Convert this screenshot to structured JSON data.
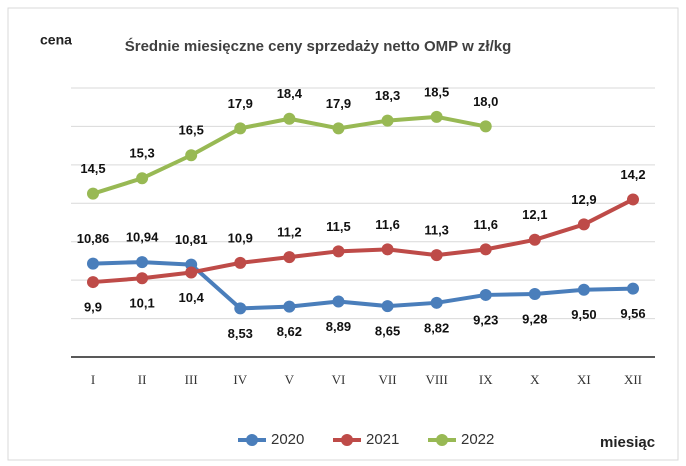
{
  "chart_data": {
    "type": "line",
    "title": "Średnie miesięczne ceny sprzedaży netto OMP w zł/kg",
    "y_label": "cena",
    "x_label": "miesiąc",
    "categories": [
      "I",
      "II",
      "III",
      "IV",
      "V",
      "VI",
      "VII",
      "VIII",
      "IX",
      "X",
      "XI",
      "XII"
    ],
    "series": [
      {
        "name": "2020",
        "color": "#4a7ebb",
        "values": [
          10.86,
          10.94,
          10.81,
          8.53,
          8.62,
          8.89,
          8.65,
          8.82,
          9.23,
          9.28,
          9.5,
          9.56
        ],
        "value_labels": [
          "10,86",
          "10,94",
          "10,81",
          "8,53",
          "8,62",
          "8,89",
          "8,65",
          "8,82",
          "9,23",
          "9,28",
          "9,50",
          "9,56"
        ]
      },
      {
        "name": "2021",
        "color": "#be4b48",
        "values": [
          9.9,
          10.1,
          10.4,
          10.9,
          11.2,
          11.5,
          11.6,
          11.3,
          11.6,
          12.1,
          12.9,
          14.2
        ],
        "value_labels": [
          "9,9",
          "10,1",
          "10,4",
          "10,9",
          "11,2",
          "11,5",
          "11,6",
          "11,3",
          "11,6",
          "12,1",
          "12,9",
          "14,2"
        ]
      },
      {
        "name": "2022",
        "color": "#98b954",
        "values": [
          14.5,
          15.3,
          16.5,
          17.9,
          18.4,
          17.9,
          18.3,
          18.5,
          18.0,
          null,
          null,
          null
        ],
        "value_labels": [
          "14,5",
          "15,3",
          "16,5",
          "17,9",
          "18,4",
          "17,9",
          "18,3",
          "18,5",
          "18,0",
          null,
          null,
          null
        ]
      }
    ],
    "ylim": [
      6,
      20
    ],
    "yticks": [
      6,
      8,
      10,
      12,
      14,
      16,
      18,
      20
    ],
    "grid": true,
    "legend": "bottom"
  }
}
